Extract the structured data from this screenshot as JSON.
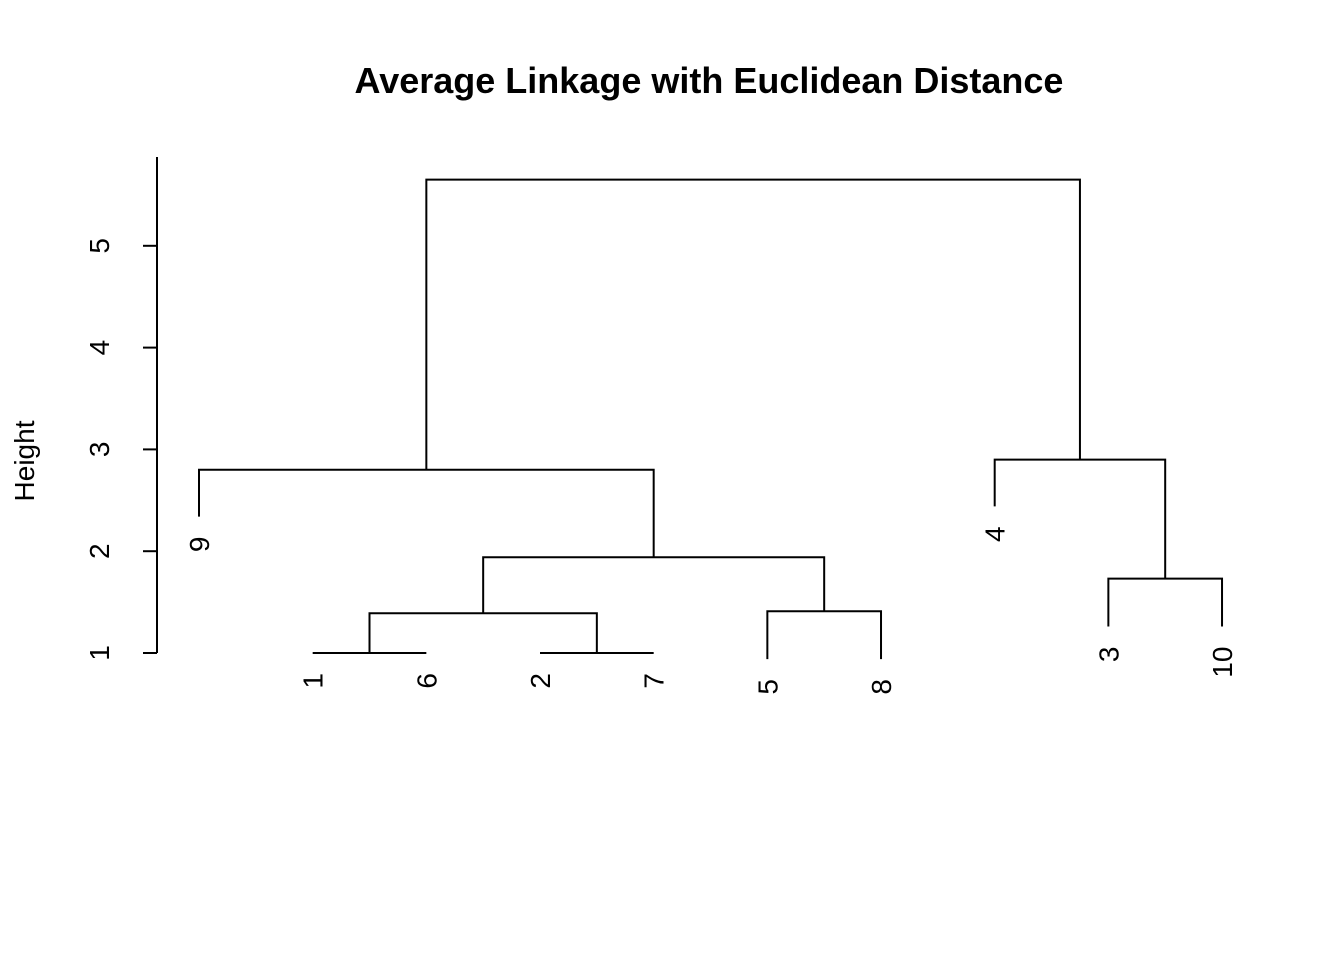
{
  "chart_data": {
    "type": "dendrogram",
    "title": "Average Linkage with Euclidean Distance",
    "xlabel": "",
    "ylabel": "Height",
    "ylim": [
      1,
      5.9
    ],
    "yticks": [
      "1",
      "2",
      "3",
      "4",
      "5"
    ],
    "leaf_order": [
      "9",
      "1",
      "6",
      "2",
      "7",
      "5",
      "8",
      "4",
      "3",
      "10"
    ],
    "leaves": [
      {
        "label": "1",
        "height": 1.0
      },
      {
        "label": "2",
        "height": 1.0
      },
      {
        "label": "3",
        "height": 1.26
      },
      {
        "label": "4",
        "height": 2.44
      },
      {
        "label": "5",
        "height": 0.94
      },
      {
        "label": "6",
        "height": 1.0
      },
      {
        "label": "7",
        "height": 1.0
      },
      {
        "label": "8",
        "height": 0.94
      },
      {
        "label": "9",
        "height": 2.34
      },
      {
        "label": "10",
        "height": 1.26
      }
    ],
    "merges": [
      {
        "left": "1",
        "right": "6",
        "height": 1.0
      },
      {
        "left": "2",
        "right": "7",
        "height": 1.0
      },
      {
        "left": "3",
        "right": "10",
        "height": 1.73
      },
      {
        "left": "5",
        "right": "8",
        "height": 1.41
      },
      {
        "left": "1-6",
        "right": "2-7",
        "height": 1.39
      },
      {
        "left": "1-6-2-7",
        "right": "5-8",
        "height": 1.94
      },
      {
        "left": "9",
        "right": "1-6-2-7-5-8",
        "height": 2.8
      },
      {
        "left": "4",
        "right": "3-10",
        "height": 2.9
      },
      {
        "left": "9-1-6-2-7-5-8",
        "right": "4-3-10",
        "height": 5.65
      }
    ]
  }
}
